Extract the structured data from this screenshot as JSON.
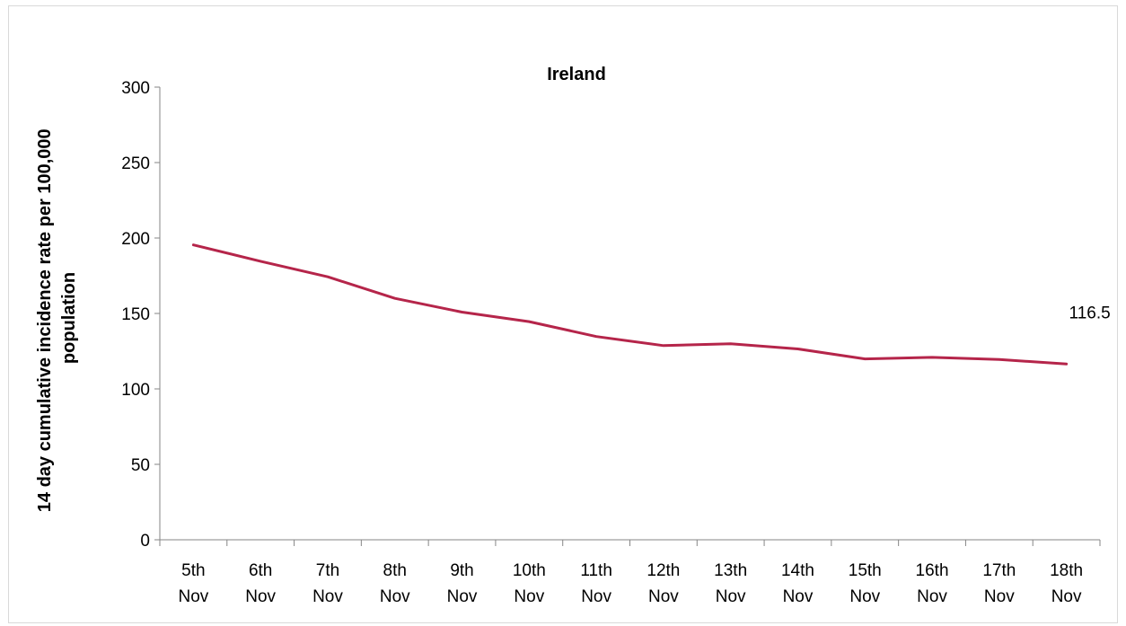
{
  "chart_data": {
    "type": "line",
    "title": "Ireland",
    "ylabel_lines": [
      "14 day cumulative incidence rate per 100,000",
      "population"
    ],
    "xlabel": "",
    "ylim": [
      0,
      300
    ],
    "yticks": [
      0,
      50,
      100,
      150,
      200,
      250,
      300
    ],
    "categories": [
      [
        "5th",
        "Nov"
      ],
      [
        "6th",
        "Nov"
      ],
      [
        "7th",
        "Nov"
      ],
      [
        "8th",
        "Nov"
      ],
      [
        "9th",
        "Nov"
      ],
      [
        "10th",
        "Nov"
      ],
      [
        "11th",
        "Nov"
      ],
      [
        "12th",
        "Nov"
      ],
      [
        "13th",
        "Nov"
      ],
      [
        "14th",
        "Nov"
      ],
      [
        "15th",
        "Nov"
      ],
      [
        "16th",
        "Nov"
      ],
      [
        "17th",
        "Nov"
      ],
      [
        "18th",
        "Nov"
      ]
    ],
    "series": [
      {
        "values": [
          195.4,
          184.6,
          174.3,
          160.0,
          150.9,
          144.6,
          134.7,
          128.7,
          129.9,
          126.5,
          119.9,
          120.9,
          119.5,
          116.5
        ],
        "color": "#b5254a"
      }
    ],
    "data_label": "116.5",
    "grid": false,
    "legend": "none"
  }
}
